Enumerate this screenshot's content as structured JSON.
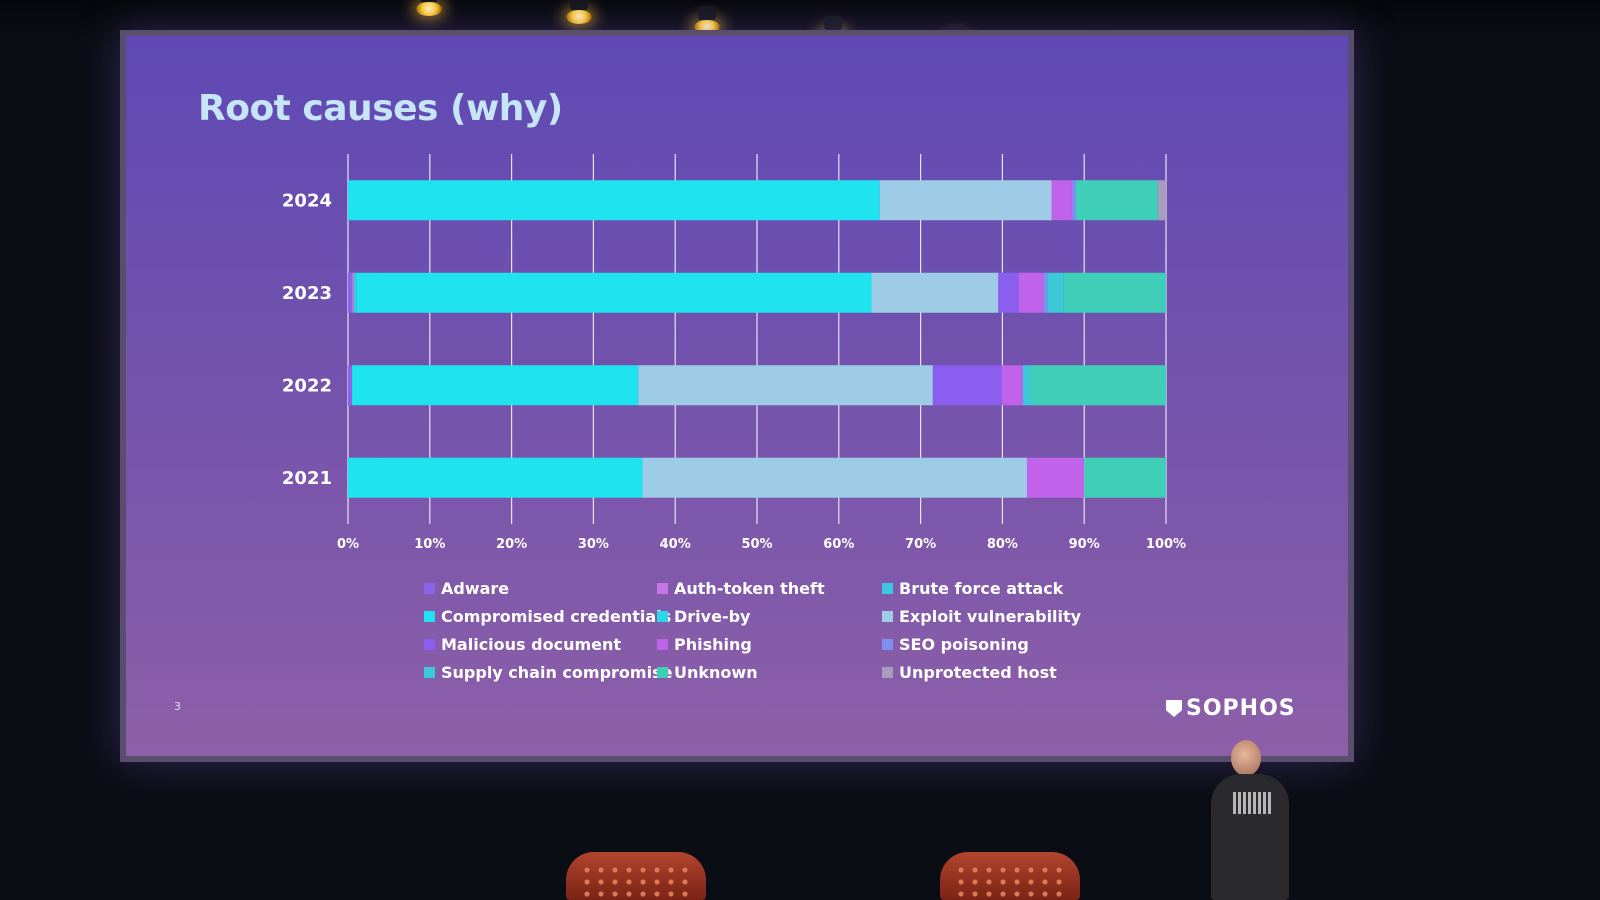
{
  "slide": {
    "title": "Root causes (why)",
    "page_number": "3",
    "brand": "SOPHOS"
  },
  "colors": {
    "slide_background_top": "#5f49b5",
    "slide_background_bottom": "#8d5fa8",
    "title_color": "#c6e6f7"
  },
  "chart_data": {
    "type": "bar",
    "orientation": "horizontal",
    "stacked": true,
    "percent_stacked": true,
    "title": "Root causes (why)",
    "categories": [
      "2024",
      "2023",
      "2022",
      "2021"
    ],
    "xlim": [
      0,
      100
    ],
    "x_ticks": [
      "0%",
      "10%",
      "20%",
      "30%",
      "40%",
      "50%",
      "60%",
      "70%",
      "80%",
      "90%",
      "100%"
    ],
    "grid": true,
    "legend_position": "bottom",
    "series": [
      {
        "name": "Adware",
        "color": "#8a63e6",
        "values": [
          0,
          0.5,
          0.5,
          0
        ]
      },
      {
        "name": "Auth-token theft",
        "color": "#c375e8",
        "values": [
          0,
          0.2,
          0,
          0
        ]
      },
      {
        "name": "Brute force attack",
        "color": "#3fc6e0",
        "values": [
          0,
          0.3,
          0,
          0
        ]
      },
      {
        "name": "Compromised credentials",
        "color": "#1fe3ef",
        "values": [
          65,
          63,
          35,
          36
        ]
      },
      {
        "name": "Drive-by",
        "color": "#2ad6e8",
        "values": [
          0,
          0,
          0,
          0
        ]
      },
      {
        "name": "Exploit vulnerability",
        "color": "#9ecbe6",
        "values": [
          21,
          15.5,
          36,
          47
        ]
      },
      {
        "name": "Malicious document",
        "color": "#8b5ef0",
        "values": [
          0,
          2.5,
          8.5,
          0
        ]
      },
      {
        "name": "Phishing",
        "color": "#c162ea",
        "values": [
          2.5,
          3,
          2.5,
          7
        ]
      },
      {
        "name": "SEO poisoning",
        "color": "#7f8ff0",
        "values": [
          0.5,
          0.5,
          0,
          0
        ]
      },
      {
        "name": "Supply chain compromise",
        "color": "#3bc9d8",
        "values": [
          0,
          2,
          1,
          0
        ]
      },
      {
        "name": "Unknown",
        "color": "#3fcfb8",
        "values": [
          10,
          12.5,
          16.5,
          10
        ]
      },
      {
        "name": "Unprotected host",
        "color": "#a89cbc",
        "values": [
          1,
          0,
          0,
          0
        ]
      }
    ]
  }
}
